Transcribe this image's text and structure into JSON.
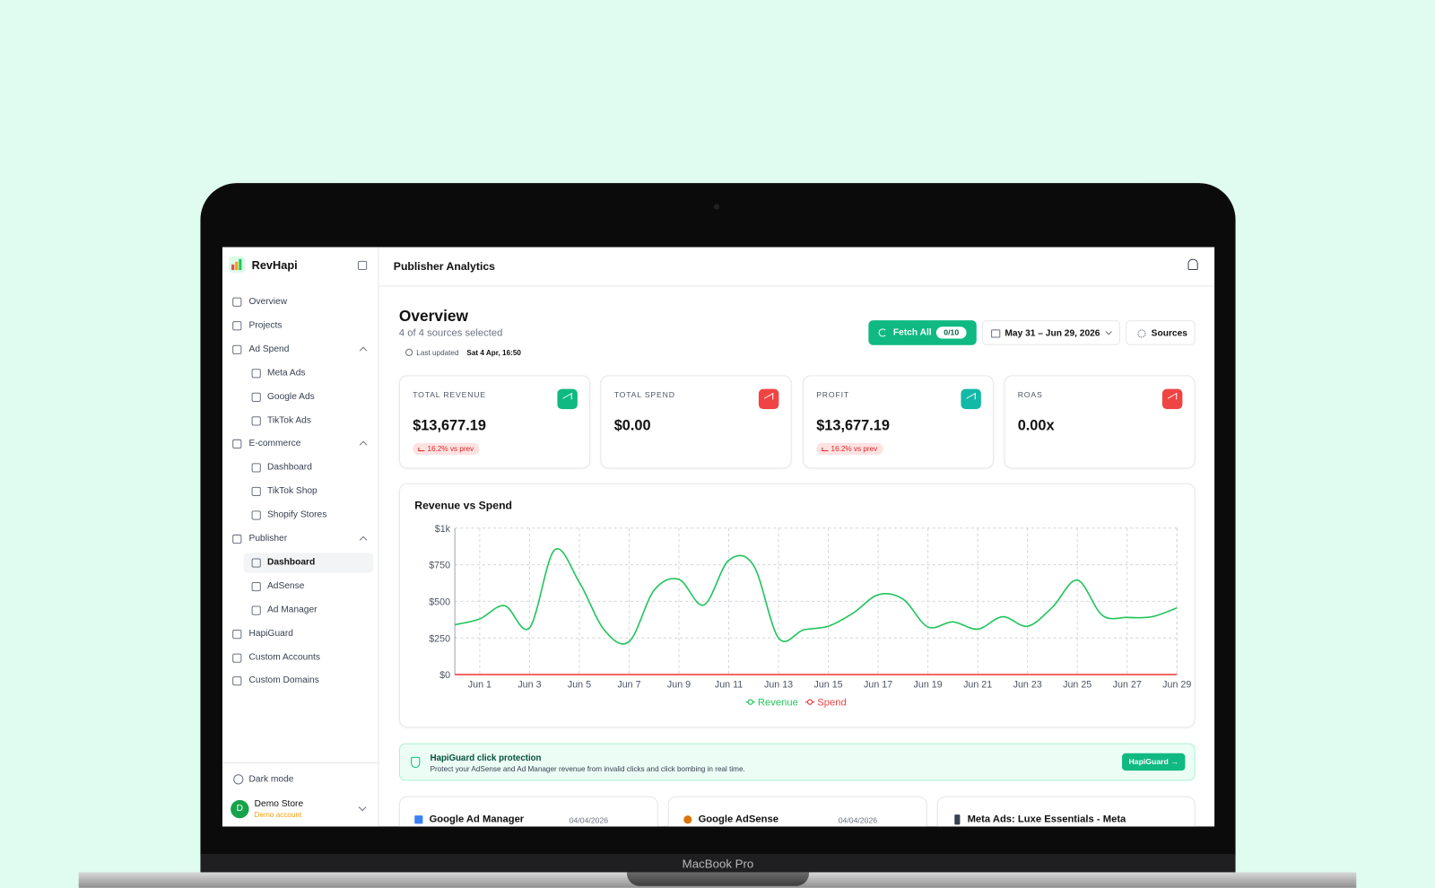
{
  "laptop_label": "MacBook Pro",
  "sidebar": {
    "brand": "RevHapi",
    "nav": [
      "Overview",
      "Projects",
      "Ad Spend",
      "Meta Ads",
      "Google Ads",
      "TikTok Ads",
      "E-commerce",
      "Dashboard",
      "TikTok Shop",
      "Shopify Stores",
      "Publisher",
      "Dashboard",
      "AdSense",
      "Ad Manager",
      "HapiGuard",
      "Custom Accounts",
      "Custom Domains"
    ],
    "dark_mode": "Dark mode",
    "account_initial": "D",
    "account_name": "Demo Store",
    "account_type": "Demo account"
  },
  "header": {
    "title": "Publisher Analytics"
  },
  "overview": {
    "title": "Overview",
    "subtitle": "4 of 4 sources selected",
    "last_updated_label": "Last updated",
    "last_updated": "Sat 4 Apr, 16:50",
    "fetch_button": "Fetch All",
    "fetch_count": "0/10",
    "date_range": "May 31 – Jun 29, 2026",
    "sources_button": "Sources"
  },
  "kpis": [
    {
      "label": "TOTAL REVENUE",
      "value": "$13,677.19",
      "change": "16.2% vs prev"
    },
    {
      "label": "TOTAL SPEND",
      "value": "$0.00"
    },
    {
      "label": "PROFIT",
      "value": "$13,677.19",
      "change": "16.2% vs prev"
    },
    {
      "label": "ROAS",
      "value": "0.00x"
    }
  ],
  "chart_data": {
    "type": "line",
    "title": "Revenue vs Spend",
    "categories": [
      null,
      "Jun 1",
      null,
      "Jun 3",
      null,
      "Jun 5",
      null,
      "Jun 7",
      null,
      "Jun 9",
      null,
      "Jun 11",
      null,
      "Jun 13",
      null,
      "Jun 15",
      null,
      "Jun 17",
      null,
      "Jun 19",
      null,
      "Jun 21",
      null,
      "Jun 23",
      null,
      "Jun 25",
      null,
      "Jun 27",
      null,
      "Jun 29"
    ],
    "series": [
      {
        "name": "Revenue",
        "color": "#22c55e",
        "values": [
          340,
          380,
          470,
          320,
          850,
          630,
          305,
          225,
          575,
          650,
          475,
          780,
          745,
          250,
          305,
          330,
          420,
          545,
          515,
          325,
          360,
          310,
          395,
          330,
          460,
          645,
          405,
          390,
          395,
          455
        ]
      },
      {
        "name": "Spend",
        "color": "#ef4444",
        "values": [
          0,
          0,
          0,
          0,
          0,
          0,
          0,
          0,
          0,
          0,
          0,
          0,
          0,
          0,
          0,
          0,
          0,
          0,
          0,
          0,
          0,
          0,
          0,
          0,
          0,
          0,
          0,
          0,
          0,
          0
        ]
      }
    ],
    "ylim": [
      0,
      1000
    ],
    "yticks": [
      {
        "value": 0,
        "label": "$0"
      },
      {
        "value": 250,
        "label": "$250"
      },
      {
        "value": 500,
        "label": "$500"
      },
      {
        "value": 750,
        "label": "$750"
      },
      {
        "value": 1000,
        "label": "$1k"
      }
    ],
    "grid": true
  },
  "banner": {
    "title": "HapiGuard click protection",
    "text": "Protect your AdSense and Ad Manager revenue from invalid clicks and click bombing in real time.",
    "button": "HapiGuard →"
  },
  "source_cards": [
    {
      "name": "Google Ad Manager",
      "date": "04/04/2026"
    },
    {
      "name": "Google AdSense",
      "date": "04/04/2026"
    },
    {
      "name": "Meta Ads: Luxe Essentials - Meta"
    }
  ]
}
